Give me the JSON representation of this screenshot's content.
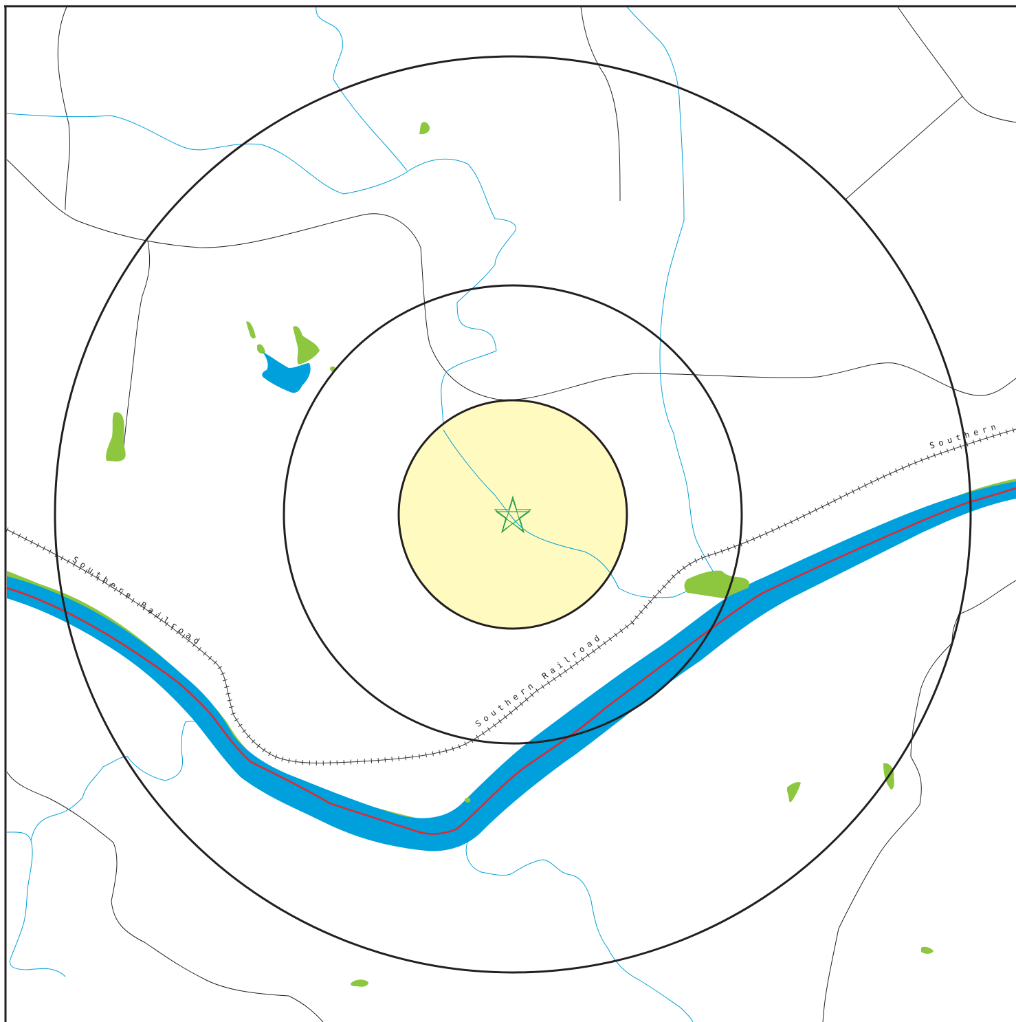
{
  "map": {
    "railroad_label": "Southern Railroad",
    "railroad_label_partial": "Southern",
    "center_marker": "star-icon",
    "rings": [
      "inner-ring",
      "middle-ring",
      "outer-ring"
    ],
    "colors": {
      "background": "#ffffff",
      "frame": "#231f20",
      "roads": "#231f20",
      "streams": "#00a0d8",
      "river": "#00a0dc",
      "river_centerline": "#e3262d",
      "vegetation": "#8dc63f",
      "pond": "#00a0dc",
      "center_zone": "#fff9b8",
      "rings": "#231f20",
      "star": "#1a9a46",
      "railroad": "#333333"
    }
  }
}
